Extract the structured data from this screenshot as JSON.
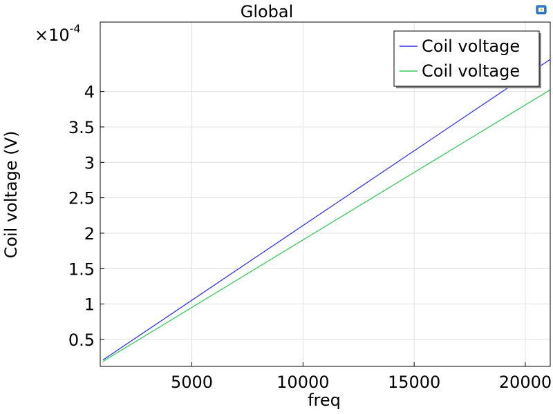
{
  "chart_data": {
    "type": "line",
    "title": "Global",
    "xlabel": "freq",
    "ylabel": "Coil voltage (V)",
    "y_multiplier": "×10",
    "y_multiplier_exp": "-4",
    "xlim": [
      880,
      21120
    ],
    "ylim": [
      0.12,
      4.98
    ],
    "x_ticks": [
      5000,
      10000,
      15000,
      20000
    ],
    "x_tick_labels": [
      "5000",
      "10000",
      "15000",
      "20000"
    ],
    "y_ticks": [
      0.5,
      1,
      1.5,
      2,
      2.5,
      3,
      3.5,
      4
    ],
    "y_tick_labels": [
      "0.5",
      "1",
      "1.5",
      "2",
      "2.5",
      "3",
      "3.5",
      "4"
    ],
    "grid": true,
    "legend_position": "top-right",
    "series": [
      {
        "name": "Coil voltage",
        "color": "#3333ff",
        "x": [
          1000,
          21100
        ],
        "y": [
          0.21,
          4.45
        ]
      },
      {
        "name": "Coil voltage",
        "color": "#33cc55",
        "x": [
          1000,
          21100
        ],
        "y": [
          0.19,
          4.02
        ]
      }
    ]
  },
  "toolbar": {
    "icon": "plot-window-icon"
  }
}
